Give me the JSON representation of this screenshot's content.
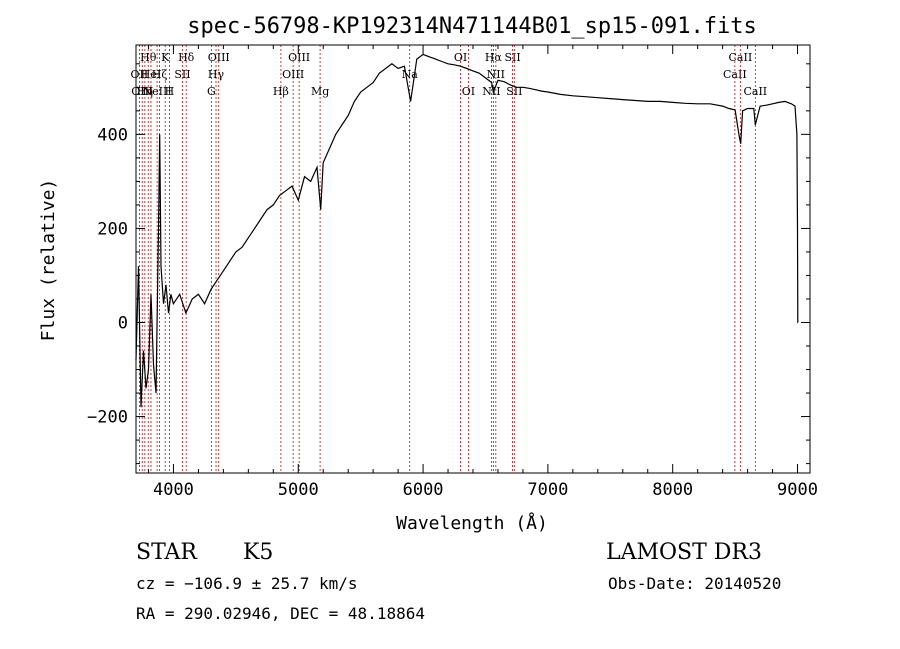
{
  "chart_data": {
    "type": "line",
    "title": "spec-56798-KP192314N471144B01_sp15-091.fits",
    "xlabel": "Wavelength (Å)",
    "ylabel": "Flux (relative)",
    "xlim": [
      3700,
      9100
    ],
    "ylim": [
      -320,
      590
    ],
    "xticks": [
      4000,
      5000,
      6000,
      7000,
      8000,
      9000
    ],
    "xtick_labels": [
      "4000",
      "5000",
      "6000",
      "7000",
      "8000",
      "9000"
    ],
    "yticks": [
      -200,
      0,
      200,
      400
    ],
    "ytick_labels": [
      "−200",
      "0",
      "200",
      "400"
    ],
    "grid": false,
    "line_color": "#000000",
    "marker_color": "#b01010",
    "spectrum": {
      "x": [
        3700,
        3720,
        3740,
        3760,
        3780,
        3800,
        3820,
        3840,
        3860,
        3880,
        3890,
        3900,
        3920,
        3940,
        3960,
        3980,
        4000,
        4050,
        4100,
        4150,
        4200,
        4250,
        4300,
        4350,
        4400,
        4450,
        4500,
        4550,
        4600,
        4650,
        4700,
        4750,
        4800,
        4850,
        4900,
        4950,
        5000,
        5050,
        5100,
        5150,
        5180,
        5200,
        5250,
        5300,
        5350,
        5400,
        5450,
        5500,
        5550,
        5600,
        5650,
        5700,
        5750,
        5800,
        5850,
        5900,
        5950,
        6000,
        6050,
        6100,
        6150,
        6200,
        6250,
        6300,
        6350,
        6400,
        6450,
        6500,
        6550,
        6563,
        6600,
        6650,
        6700,
        6750,
        6800,
        6850,
        6900,
        6950,
        7000,
        7100,
        7200,
        7300,
        7400,
        7500,
        7600,
        7700,
        7800,
        7900,
        8000,
        8100,
        8200,
        8300,
        8400,
        8450,
        8500,
        8530,
        8545,
        8560,
        8600,
        8650,
        8662,
        8700,
        8750,
        8800,
        8850,
        8900,
        8950,
        8980,
        8995,
        9000,
        9002,
        9004
      ],
      "y": [
        -80,
        120,
        -180,
        -60,
        -140,
        -100,
        60,
        -90,
        -150,
        200,
        400,
        120,
        40,
        80,
        20,
        60,
        40,
        60,
        20,
        50,
        60,
        40,
        70,
        90,
        110,
        130,
        150,
        160,
        180,
        200,
        220,
        240,
        250,
        270,
        280,
        290,
        260,
        310,
        300,
        330,
        240,
        340,
        370,
        400,
        420,
        440,
        470,
        490,
        500,
        510,
        530,
        540,
        550,
        540,
        545,
        470,
        560,
        570,
        565,
        560,
        555,
        550,
        548,
        545,
        540,
        535,
        530,
        520,
        510,
        490,
        515,
        512,
        505,
        500,
        500,
        498,
        495,
        492,
        490,
        485,
        482,
        480,
        478,
        476,
        474,
        472,
        470,
        470,
        468,
        466,
        465,
        465,
        460,
        455,
        452,
        400,
        380,
        450,
        455,
        455,
        420,
        460,
        462,
        465,
        468,
        470,
        465,
        460,
        400,
        200,
        0,
        0
      ]
    },
    "line_markers": [
      {
        "x": 3727,
        "label": "OII",
        "row": 1
      },
      {
        "x": 3750,
        "label": "OIII",
        "row": 2
      },
      {
        "x": 3771,
        "label": "Hη",
        "row": 2
      },
      {
        "x": 3798,
        "label": "Hθ",
        "row": 0
      },
      {
        "x": 3820,
        "label": "HeI",
        "row": 1
      },
      {
        "x": 3869,
        "label": "NeIII",
        "row": 2
      },
      {
        "x": 3889,
        "label": "Hζ",
        "row": 1
      },
      {
        "x": 3934,
        "label": "K",
        "row": 0
      },
      {
        "x": 3968,
        "label": "H",
        "row": 2
      },
      {
        "x": 4072,
        "label": "SII",
        "row": 1
      },
      {
        "x": 4102,
        "label": "Hδ",
        "row": 0
      },
      {
        "x": 4304,
        "label": "G",
        "row": 2
      },
      {
        "x": 4341,
        "label": "Hγ",
        "row": 1
      },
      {
        "x": 4363,
        "label": "OIII",
        "row": 0
      },
      {
        "x": 4861,
        "label": "Hβ",
        "row": 2
      },
      {
        "x": 4959,
        "label": "OIII",
        "row": 1
      },
      {
        "x": 5007,
        "label": "OIII",
        "row": 0
      },
      {
        "x": 5175,
        "label": "Mg",
        "row": 2
      },
      {
        "x": 5893,
        "label": "Na",
        "row": 1
      },
      {
        "x": 6300,
        "label": "OI",
        "row": 0
      },
      {
        "x": 6363,
        "label": "OI",
        "row": 2
      },
      {
        "x": 6548,
        "label": "NII",
        "row": 2
      },
      {
        "x": 6563,
        "label": "Hα",
        "row": 0
      },
      {
        "x": 6583,
        "label": "NII",
        "row": 1
      },
      {
        "x": 6717,
        "label": "SII",
        "row": 0
      },
      {
        "x": 6731,
        "label": "SII",
        "row": 2
      },
      {
        "x": 8498,
        "label": "CaII",
        "row": 1
      },
      {
        "x": 8542,
        "label": "CaII",
        "row": 0
      },
      {
        "x": 8662,
        "label": "CaII",
        "row": 2
      }
    ]
  },
  "info": {
    "object_class": "STAR",
    "subclass": "K5",
    "survey": "LAMOST DR3",
    "cz_line": "cz = −106.9 ± 25.7 km/s",
    "obs_date": "Obs-Date: 20140520",
    "coords_line": "RA = 290.02946, DEC =  48.18864"
  }
}
